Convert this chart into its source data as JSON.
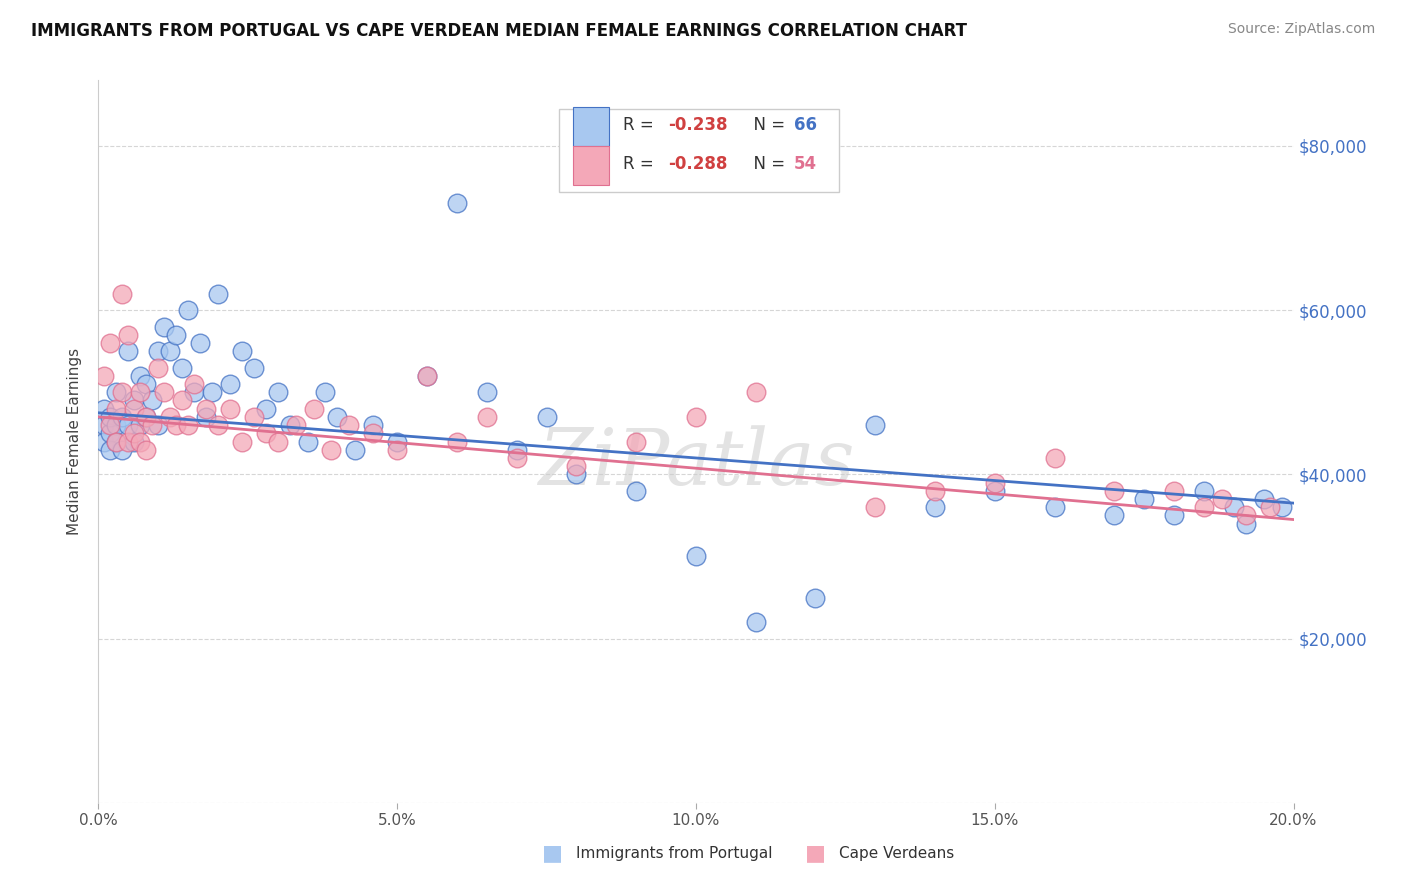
{
  "title": "IMMIGRANTS FROM PORTUGAL VS CAPE VERDEAN MEDIAN FEMALE EARNINGS CORRELATION CHART",
  "source": "Source: ZipAtlas.com",
  "ylabel": "Median Female Earnings",
  "yticks": [
    0,
    20000,
    40000,
    60000,
    80000
  ],
  "xticks": [
    0.0,
    0.05,
    0.1,
    0.15,
    0.2
  ],
  "xlim": [
    0.0,
    0.2
  ],
  "ylim": [
    0,
    88000
  ],
  "color_blue": "#A8C8F0",
  "color_pink": "#F4A8B8",
  "line_blue": "#4472C4",
  "line_pink": "#E07090",
  "watermark": "ZiPatlas",
  "legend_r1": "-0.238",
  "legend_n1": "66",
  "legend_r2": "-0.288",
  "legend_n2": "54",
  "blue_x": [
    0.001,
    0.001,
    0.001,
    0.002,
    0.002,
    0.002,
    0.003,
    0.003,
    0.003,
    0.004,
    0.004,
    0.005,
    0.005,
    0.006,
    0.006,
    0.007,
    0.007,
    0.008,
    0.008,
    0.009,
    0.01,
    0.01,
    0.011,
    0.012,
    0.013,
    0.014,
    0.015,
    0.016,
    0.017,
    0.018,
    0.019,
    0.02,
    0.022,
    0.024,
    0.026,
    0.028,
    0.03,
    0.032,
    0.035,
    0.038,
    0.04,
    0.043,
    0.046,
    0.05,
    0.055,
    0.06,
    0.065,
    0.07,
    0.075,
    0.08,
    0.09,
    0.1,
    0.11,
    0.12,
    0.13,
    0.14,
    0.15,
    0.16,
    0.17,
    0.175,
    0.18,
    0.185,
    0.19,
    0.192,
    0.195,
    0.198
  ],
  "blue_y": [
    46000,
    44000,
    48000,
    45000,
    47000,
    43000,
    46000,
    50000,
    44000,
    47000,
    43000,
    55000,
    46000,
    49000,
    44000,
    52000,
    46000,
    51000,
    47000,
    49000,
    55000,
    46000,
    58000,
    55000,
    57000,
    53000,
    60000,
    50000,
    56000,
    47000,
    50000,
    62000,
    51000,
    55000,
    53000,
    48000,
    50000,
    46000,
    44000,
    50000,
    47000,
    43000,
    46000,
    44000,
    52000,
    73000,
    50000,
    43000,
    47000,
    40000,
    38000,
    30000,
    22000,
    25000,
    46000,
    36000,
    38000,
    36000,
    35000,
    37000,
    35000,
    38000,
    36000,
    34000,
    37000,
    36000
  ],
  "pink_x": [
    0.001,
    0.002,
    0.002,
    0.003,
    0.003,
    0.004,
    0.004,
    0.005,
    0.005,
    0.006,
    0.006,
    0.007,
    0.007,
    0.008,
    0.008,
    0.009,
    0.01,
    0.011,
    0.012,
    0.013,
    0.014,
    0.015,
    0.016,
    0.018,
    0.02,
    0.022,
    0.024,
    0.026,
    0.028,
    0.03,
    0.033,
    0.036,
    0.039,
    0.042,
    0.046,
    0.05,
    0.055,
    0.06,
    0.065,
    0.07,
    0.08,
    0.09,
    0.1,
    0.11,
    0.13,
    0.14,
    0.15,
    0.16,
    0.17,
    0.18,
    0.185,
    0.188,
    0.192,
    0.196
  ],
  "pink_y": [
    52000,
    56000,
    46000,
    48000,
    44000,
    62000,
    50000,
    57000,
    44000,
    48000,
    45000,
    50000,
    44000,
    47000,
    43000,
    46000,
    53000,
    50000,
    47000,
    46000,
    49000,
    46000,
    51000,
    48000,
    46000,
    48000,
    44000,
    47000,
    45000,
    44000,
    46000,
    48000,
    43000,
    46000,
    45000,
    43000,
    52000,
    44000,
    47000,
    42000,
    41000,
    44000,
    47000,
    50000,
    36000,
    38000,
    39000,
    42000,
    38000,
    38000,
    36000,
    37000,
    35000,
    36000
  ],
  "blue_line_x": [
    0.0,
    0.2
  ],
  "blue_line_y": [
    47500,
    36500
  ],
  "pink_line_x": [
    0.0,
    0.2
  ],
  "pink_line_y": [
    47000,
    34500
  ]
}
